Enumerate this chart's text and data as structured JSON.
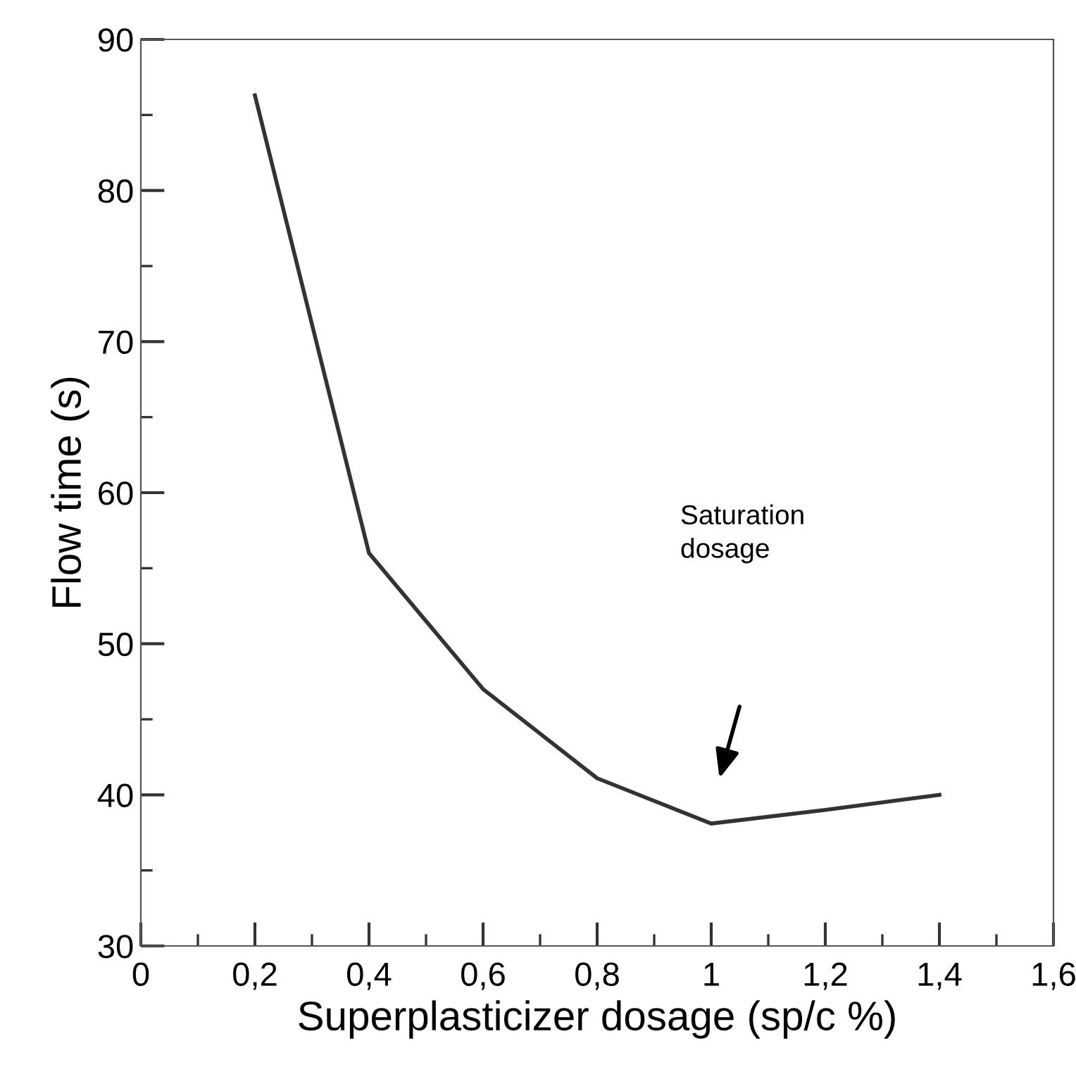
{
  "chart_data": {
    "type": "line",
    "xlabel": "Superplasticizer dosage (sp/c %)",
    "ylabel": "Flow time (s)",
    "x": [
      0.2,
      0.4,
      0.6,
      0.8,
      1.0,
      1.2,
      1.4
    ],
    "series": [
      {
        "color": "#333333",
        "values": [
          86.3,
          56,
          47,
          41.1,
          38.1,
          39,
          40
        ]
      }
    ],
    "xlim": [
      0,
      1.6
    ],
    "ylim": [
      30,
      90
    ],
    "xticks": [
      0,
      {
        "value": 0.2,
        "label": "0,2"
      },
      {
        "value": 0.4,
        "label": "0,4"
      },
      {
        "value": 0.6,
        "label": "0,6"
      },
      {
        "value": 0.8,
        "label": "0,8"
      },
      1,
      {
        "value": 1.2,
        "label": "1,2"
      },
      {
        "value": 1.4,
        "label": "1,4"
      },
      {
        "value": 1.6,
        "label": "1,6"
      }
    ],
    "yticks": [
      30,
      40,
      50,
      60,
      70,
      80,
      90
    ],
    "annotations": [
      "Saturation\ndosage"
    ],
    "grid": false,
    "legend": false,
    "line_style": "solid"
  }
}
